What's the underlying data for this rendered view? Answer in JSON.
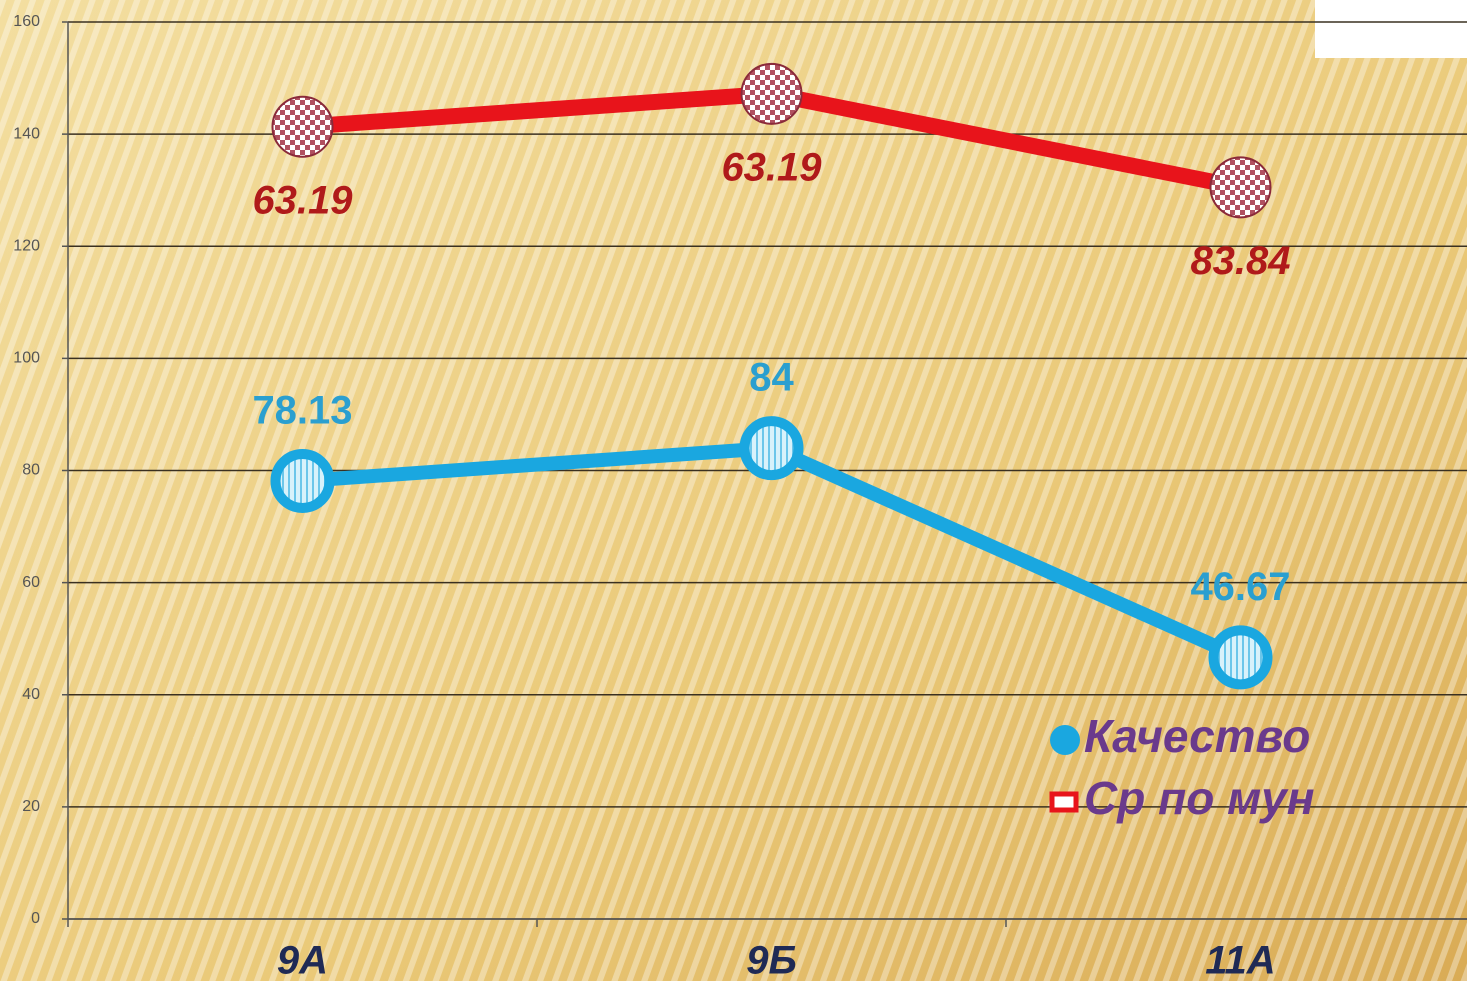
{
  "chart_data": {
    "type": "line",
    "stacked": true,
    "categories": [
      "9А",
      "9Б",
      "11А"
    ],
    "series": [
      {
        "name": "Качество",
        "color": "#1aa7e0",
        "values": [
          78.13,
          84,
          46.67
        ]
      },
      {
        "name": "Ср по мун",
        "color": "#e8141b",
        "values": [
          63.19,
          63.19,
          83.84
        ]
      }
    ],
    "ylim": [
      0,
      160
    ],
    "yticks": [
      0,
      20,
      40,
      60,
      80,
      100,
      120,
      140,
      160
    ],
    "grid": true
  }
}
